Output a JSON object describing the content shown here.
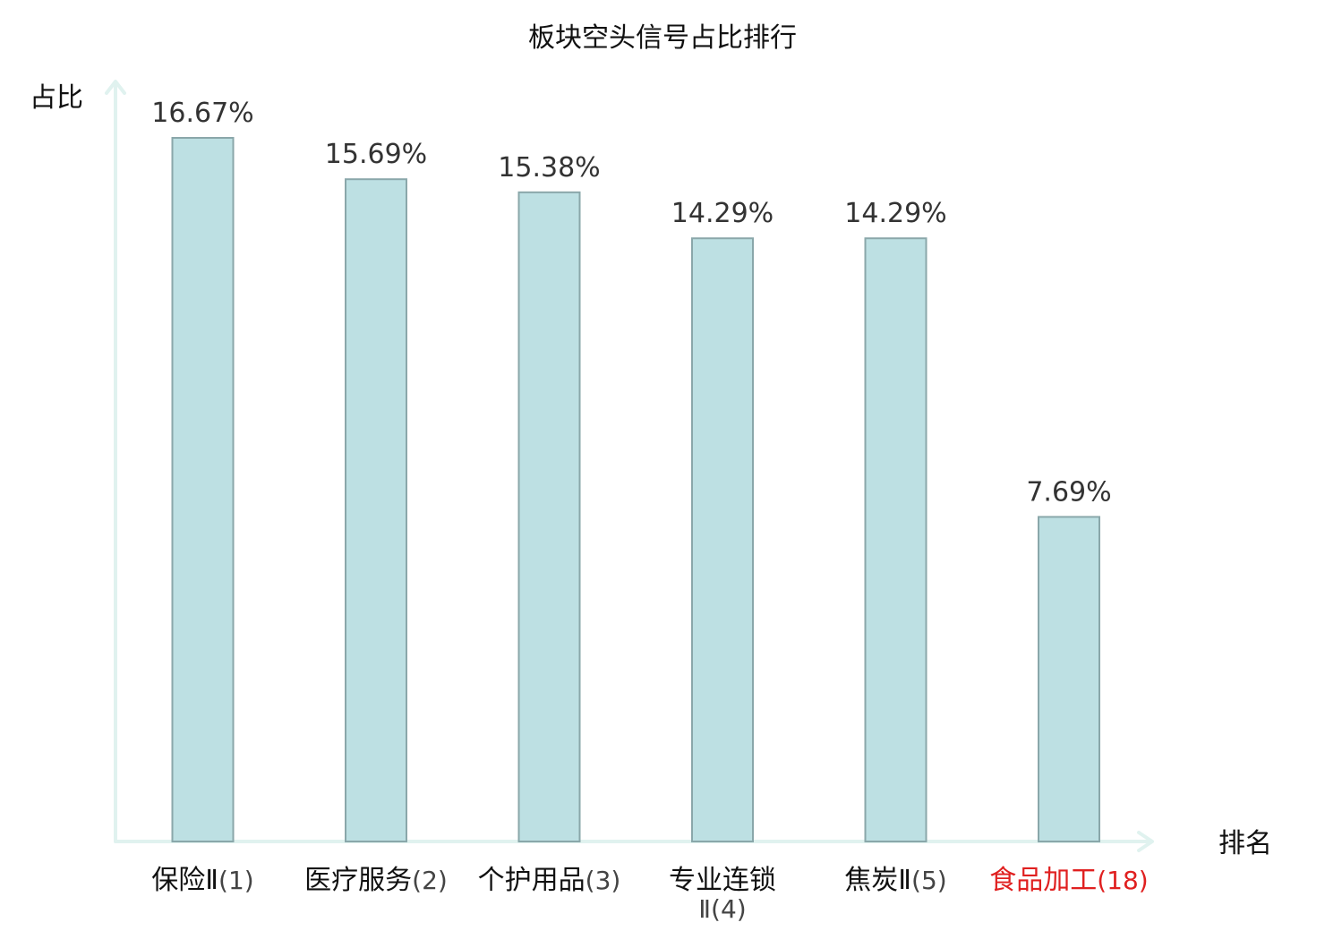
{
  "chart_data": {
    "type": "bar",
    "title": "板块空头信号占比排行",
    "xlabel": "排名",
    "ylabel": "占比",
    "categories": [
      {
        "name": "保险Ⅱ",
        "rank": "(1)",
        "highlight": false
      },
      {
        "name": "医疗服务",
        "rank": "(2)",
        "highlight": false
      },
      {
        "name": "个护用品",
        "rank": "(3)",
        "highlight": false
      },
      {
        "name": "专业连锁",
        "rank": "Ⅱ(4)",
        "highlight": false
      },
      {
        "name": "焦炭Ⅱ",
        "rank": "(5)",
        "highlight": false
      },
      {
        "name": "食品加工",
        "rank": "(18)",
        "highlight": true
      }
    ],
    "values": [
      16.67,
      15.69,
      15.38,
      14.29,
      14.29,
      7.69
    ],
    "value_labels": [
      "16.67%",
      "15.69%",
      "15.38%",
      "14.29%",
      "14.29%",
      "7.69%"
    ],
    "ylim": [
      0,
      16.67
    ],
    "grid": false,
    "colors": {
      "bar_fill": "#bde0e3",
      "bar_stroke": "#8aa7aa",
      "axis": "#e0f2ef",
      "text": "#111111",
      "rank_text": "#444444",
      "highlight": "#e02020"
    }
  }
}
